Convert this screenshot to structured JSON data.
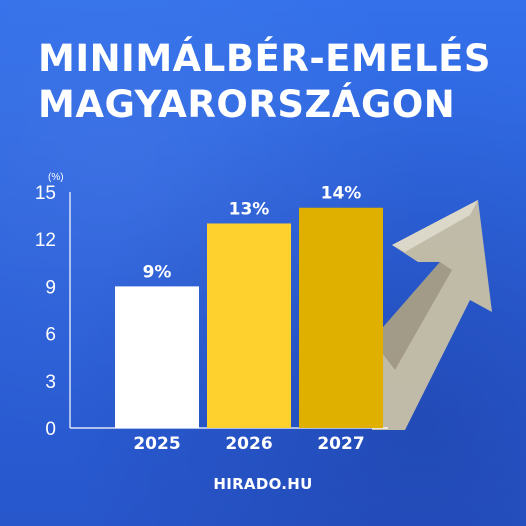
{
  "title": {
    "line1": "MINIMÁLBÉR-EMELÉS",
    "line2": "MAGYARORSZÁGON"
  },
  "footer": {
    "source": "HIRADO.HU"
  },
  "colors": {
    "background": "#2f66e0",
    "bar_2025": "#ffffff",
    "bar_2026": "#ffd12e",
    "bar_2027": "#e0b000",
    "text": "#ffffff",
    "axis": "#ffffff"
  },
  "chart_data": {
    "type": "bar",
    "title": "MINIMÁLBÉR-EMELÉS MAGYARORSZÁGON",
    "ylabel": "(%)",
    "xlabel": "",
    "ylim": [
      0,
      15
    ],
    "yticks": [
      0,
      3,
      6,
      9,
      12,
      15
    ],
    "categories": [
      "2025",
      "2026",
      "2027"
    ],
    "values": [
      9,
      13,
      14
    ],
    "data_labels": [
      "9%",
      "13%",
      "14%"
    ],
    "grid": false
  }
}
